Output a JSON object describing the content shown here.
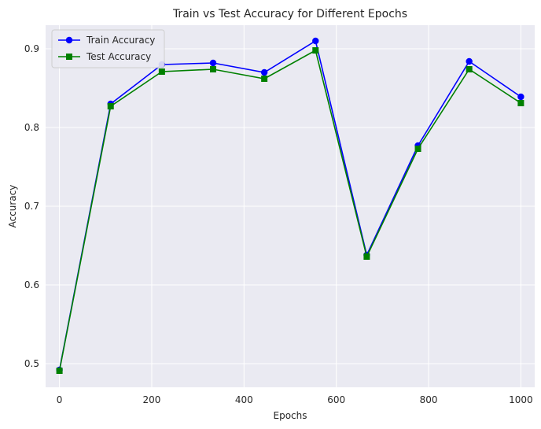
{
  "chart_data": {
    "type": "line",
    "title": "Train vs Test Accuracy for Different Epochs",
    "xlabel": "Epochs",
    "ylabel": "Accuracy",
    "xlim": [
      -30,
      1030
    ],
    "ylim": [
      0.47,
      0.93
    ],
    "xticks": [
      0,
      200,
      400,
      600,
      800,
      1000
    ],
    "yticks": [
      0.5,
      0.6,
      0.7,
      0.8,
      0.9
    ],
    "grid": true,
    "legend_position": "top-left",
    "x": [
      0,
      111,
      222,
      333,
      444,
      555,
      666,
      777,
      888,
      1000
    ],
    "series": [
      {
        "name": "Train Accuracy",
        "color": "#0000ff",
        "marker": "circle",
        "values": [
          0.492,
          0.83,
          0.88,
          0.882,
          0.87,
          0.91,
          0.638,
          0.777,
          0.884,
          0.839
        ]
      },
      {
        "name": "Test Accuracy",
        "color": "#008000",
        "marker": "square",
        "values": [
          0.491,
          0.827,
          0.871,
          0.874,
          0.862,
          0.898,
          0.636,
          0.773,
          0.874,
          0.831
        ]
      }
    ]
  },
  "colors": {
    "plot_background": "#eaeaf2",
    "grid": "#ffffff",
    "text": "#262626"
  }
}
